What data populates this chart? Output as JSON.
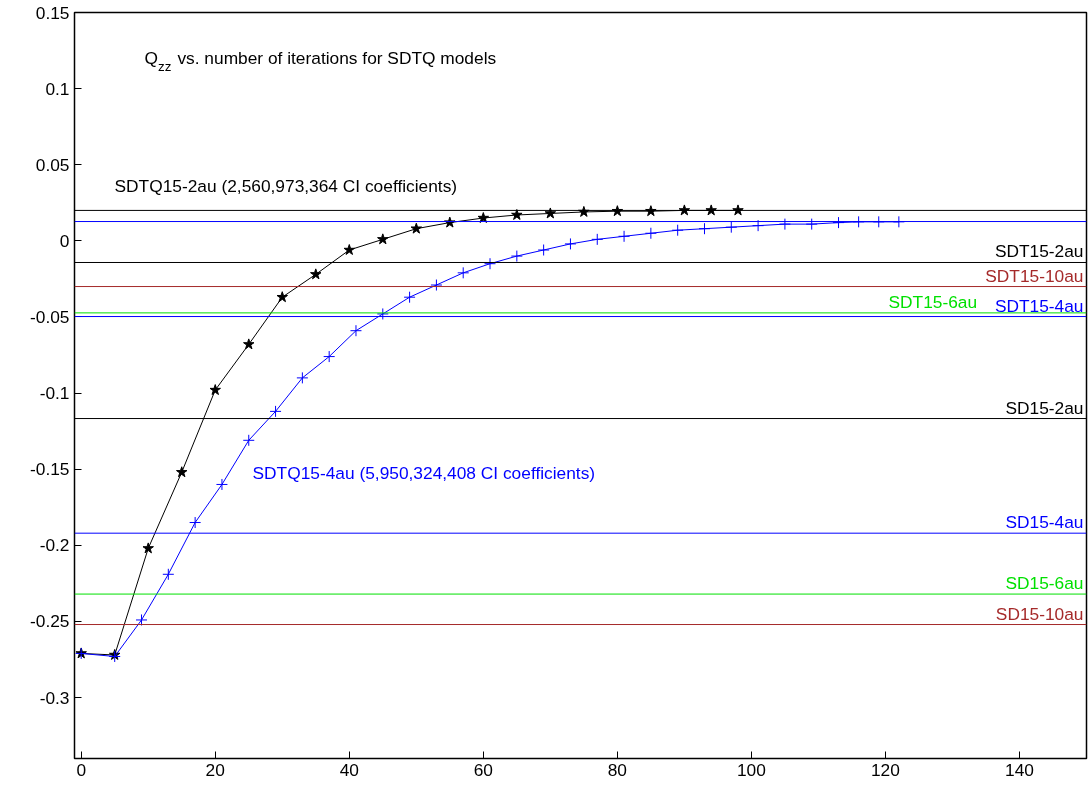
{
  "chart_data": {
    "type": "line",
    "title": "Q$_{zz}$ vs. number of iterations for SDTQ models",
    "xlim": [
      -1,
      150
    ],
    "xticks": [
      0,
      20,
      40,
      60,
      80,
      100,
      120,
      140
    ],
    "ylim": [
      -0.34,
      0.15
    ],
    "yticks": [
      0.15,
      0.1,
      0.05,
      0,
      -0.05,
      -0.1,
      -0.15,
      -0.2,
      -0.25,
      -0.3
    ],
    "grid": false,
    "line_style": "solid",
    "series": [
      {
        "name": "SDTQ15-2au (2,560,973,364 CI coefficients)",
        "color": "#000000",
        "marker": "star",
        "x": [
          0,
          5,
          10,
          15,
          20,
          25,
          30,
          35,
          40,
          45,
          50,
          55,
          60,
          65,
          70,
          75,
          80,
          85,
          90,
          94,
          98
        ],
        "values": [
          -0.271,
          -0.272,
          -0.202,
          -0.152,
          -0.098,
          -0.068,
          -0.037,
          -0.022,
          -0.006,
          0.001,
          0.008,
          0.012,
          0.015,
          0.017,
          0.018,
          0.019,
          0.0195,
          0.0195,
          0.02,
          0.02,
          0.02
        ]
      },
      {
        "name": "SDTQ15-4au (5,950,324,408 CI coefficients)",
        "color": "#0000ff",
        "marker": "cross",
        "x": [
          0,
          5,
          9,
          13,
          17,
          21,
          25,
          29,
          33,
          37,
          41,
          45,
          49,
          53,
          57,
          61,
          65,
          69,
          73,
          77,
          81,
          85,
          89,
          93,
          97,
          101,
          105,
          109,
          113,
          116,
          119,
          122
        ],
        "values": [
          -0.271,
          -0.273,
          -0.249,
          -0.219,
          -0.185,
          -0.16,
          -0.131,
          -0.112,
          -0.09,
          -0.076,
          -0.059,
          -0.048,
          -0.037,
          -0.029,
          -0.021,
          -0.015,
          -0.01,
          -0.006,
          -0.002,
          0.001,
          0.003,
          0.005,
          0.007,
          0.008,
          0.009,
          0.01,
          0.011,
          0.011,
          0.012,
          0.0125,
          0.0125,
          0.0125
        ]
      }
    ],
    "ref_lines": [
      {
        "axis": "y",
        "value": 0.02,
        "label": null,
        "color": "#000000"
      },
      {
        "axis": "y",
        "value": 0.0127,
        "label": null,
        "color": "#0000ff"
      },
      {
        "axis": "y",
        "value": -0.0142,
        "label": "SDT15-2au",
        "color": "#000000"
      },
      {
        "axis": "y",
        "value": -0.03,
        "label": "SDT15-10au",
        "color": "#a52a2a"
      },
      {
        "axis": "y",
        "value": -0.0497,
        "label": "SDT15-4au",
        "color": "#0000ff"
      },
      {
        "axis": "y",
        "value": -0.0473,
        "label": "SDT15-6au",
        "color": "#00e000"
      },
      {
        "axis": "y",
        "value": -0.1167,
        "label": "SD15-2au",
        "color": "#000000"
      },
      {
        "axis": "y",
        "value": -0.192,
        "label": "SD15-4au",
        "color": "#0000ff"
      },
      {
        "axis": "y",
        "value": -0.232,
        "label": "SD15-6au",
        "color": "#00e000"
      },
      {
        "axis": "y",
        "value": -0.252,
        "label": "SD15-10au",
        "color": "#a52a2a"
      }
    ]
  }
}
